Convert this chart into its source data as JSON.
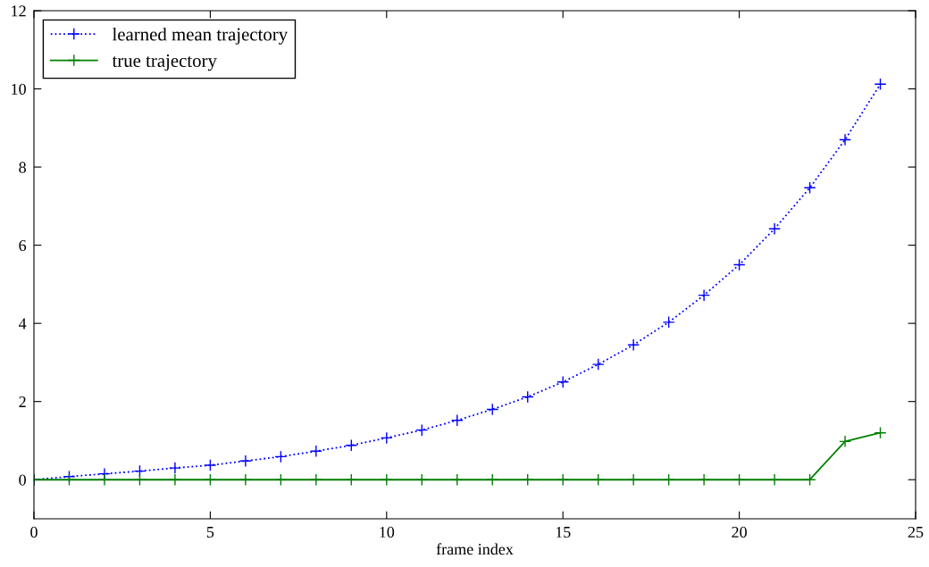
{
  "chart_data": {
    "type": "line",
    "xlabel": "frame index",
    "x": [
      0,
      1,
      2,
      3,
      4,
      5,
      6,
      7,
      8,
      9,
      10,
      11,
      12,
      13,
      14,
      15,
      16,
      17,
      18,
      19,
      20,
      21,
      22,
      23,
      24
    ],
    "series": [
      {
        "name": "learned mean trajectory",
        "color": "#0000ff",
        "line_style": "dotted",
        "marker": "cross",
        "values": [
          0.0,
          0.08,
          0.15,
          0.22,
          0.3,
          0.37,
          0.48,
          0.59,
          0.73,
          0.88,
          1.07,
          1.27,
          1.52,
          1.8,
          2.12,
          2.5,
          2.95,
          3.45,
          4.03,
          4.72,
          5.5,
          6.42,
          7.47,
          8.7,
          10.12
        ]
      },
      {
        "name": "true trajectory",
        "color": "#008000",
        "line_style": "solid",
        "marker": "cross",
        "values": [
          0,
          0,
          0,
          0,
          0,
          0,
          0,
          0,
          0,
          0,
          0,
          0,
          0,
          0,
          0,
          0,
          0,
          0,
          0,
          0,
          0,
          0,
          0,
          0.98,
          1.2
        ]
      }
    ],
    "xlim": [
      0,
      25
    ],
    "xticks": [
      0,
      5,
      10,
      15,
      20,
      25
    ],
    "ylim": [
      -1,
      12
    ],
    "yticks": [
      0,
      2,
      4,
      6,
      8,
      10,
      12
    ],
    "grid": false,
    "legend": "top left"
  }
}
